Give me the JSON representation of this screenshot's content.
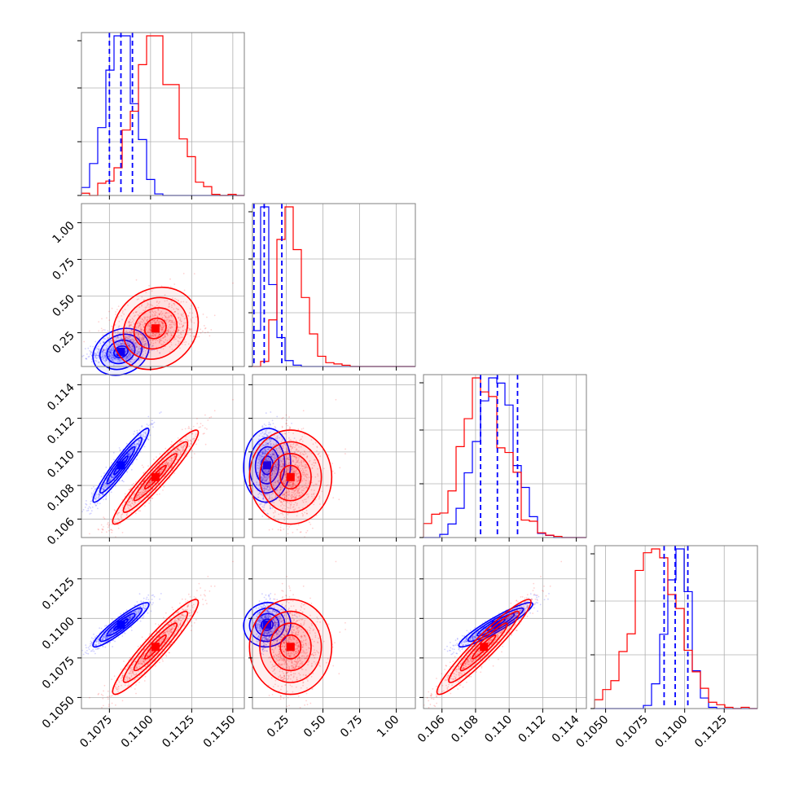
{
  "chart_data": {
    "type": "corner",
    "grid": true,
    "colors": {
      "series_a": "#0000ff",
      "series_b": "#ff0000",
      "grid": "#b0b0b0",
      "frame": "#7f7f7f"
    },
    "series": [
      {
        "color": "#0000ff",
        "mean": [
          0.1082,
          0.12,
          0.1092,
          0.1096
        ],
        "sd": [
          0.00085,
          0.08,
          0.0011,
          0.0007
        ],
        "corr": [
          [
            1,
            0.2,
            0.95,
            0.92
          ],
          [
            0.2,
            1,
            0.05,
            0.05
          ],
          [
            0.95,
            0.05,
            1,
            0.93
          ],
          [
            0.92,
            0.05,
            0.93,
            1
          ]
        ]
      },
      {
        "color": "#ff0000",
        "mean": [
          0.1103,
          0.28,
          0.1085,
          0.1082
        ],
        "sd": [
          0.0013,
          0.14,
          0.0014,
          0.0015
        ],
        "corr": [
          [
            1,
            0.15,
            0.95,
            0.94
          ],
          [
            0.15,
            1,
            0.0,
            0.0
          ],
          [
            0.95,
            0.0,
            1,
            0.95
          ],
          [
            0.94,
            0.0,
            0.95,
            1
          ]
        ]
      }
    ],
    "quantile_lines": {
      "color": "#0000ff",
      "values": [
        [
          0.1075,
          0.1082,
          0.1089
        ],
        [
          0.03,
          0.1,
          0.22
        ],
        [
          0.1083,
          0.1093,
          0.1105
        ],
        [
          0.1087,
          0.1094,
          0.1102
        ]
      ]
    },
    "axis_ranges": [
      [
        0.1058,
        0.1157
      ],
      [
        0.02,
        1.13
      ],
      [
        0.1049,
        0.1146
      ],
      [
        0.1043,
        0.1146
      ]
    ],
    "tick_values": [
      [
        0.1075,
        0.11,
        0.1125,
        0.115
      ],
      [
        0.25,
        0.5,
        0.75,
        1.0
      ],
      [
        0.106,
        0.108,
        0.11,
        0.112,
        0.114
      ],
      [
        0.105,
        0.1075,
        0.11,
        0.1125
      ]
    ],
    "tick_labels": [
      [
        "0.1075",
        "0.1100",
        "0.1125",
        "0.1150"
      ],
      [
        "0.25",
        "0.50",
        "0.75",
        "1.00"
      ],
      [
        "0.106",
        "0.108",
        "0.110",
        "0.112",
        "0.114"
      ],
      [
        "0.1050",
        "0.1075",
        "0.1100",
        "0.1125"
      ]
    ],
    "bottom_tick_labels": [
      [
        "0.1075",
        "0.1100",
        "0.1125",
        "0.1150"
      ],
      [
        "0.25",
        "0.50",
        "0.75",
        "1.00"
      ],
      [
        "0.106",
        "0.108",
        "0.110",
        "0.112",
        "0.114"
      ],
      [
        "0.1050",
        "0.1075",
        "0.1100",
        "0.1125"
      ]
    ],
    "left_tick_labels": [
      [],
      [
        "0.25",
        "0.50",
        "0.75",
        "1.00"
      ],
      [
        "0.106",
        "0.108",
        "0.110",
        "0.112",
        "0.114"
      ],
      [
        "0.1050",
        "0.1075",
        "0.1100",
        "0.1125"
      ]
    ]
  }
}
